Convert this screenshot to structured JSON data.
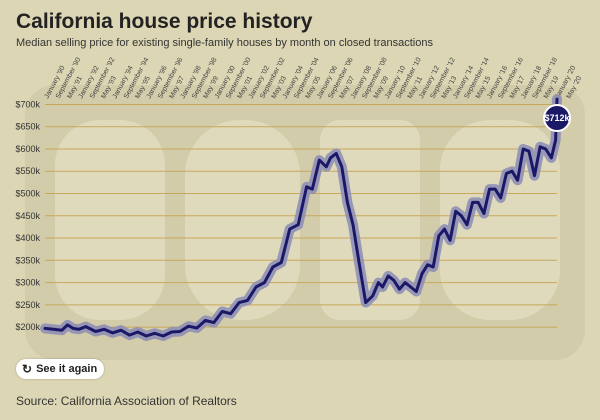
{
  "header": {
    "title": "California house price history",
    "subtitle": "Median selling price for existing single-family houses by month on closed transactions"
  },
  "controls": {
    "replay_label": "See it again",
    "replay_icon": "replay-icon"
  },
  "footer": {
    "source": "Source: California Association of Realtors"
  },
  "colors": {
    "background": "#dcd6b4",
    "line": "#1b1868",
    "halo": "#8f8fb5",
    "grid": "#c8a75a",
    "callout": "#1b1868"
  },
  "callout": {
    "label": "$712k"
  },
  "chart_data": {
    "type": "line",
    "title": "California house price history",
    "subtitle": "Median selling price for existing single-family houses by month on closed transactions",
    "x_range": [
      "1990-01",
      "2020-05"
    ],
    "ylim": [
      180,
      710
    ],
    "y_ticks": [
      200,
      250,
      300,
      350,
      400,
      450,
      500,
      550,
      600,
      650,
      700
    ],
    "y_tick_labels": [
      "$200k",
      "$250k",
      "$300k",
      "$350k",
      "$400k",
      "$450k",
      "$500k",
      "$550k",
      "$600k",
      "$650k",
      "$700k"
    ],
    "grid": true,
    "x_tick_labels": [
      "January '90",
      "September '90",
      "May '91",
      "January '92",
      "September '92",
      "May '93",
      "January '94",
      "September '94",
      "May '95",
      "January '96",
      "September '96",
      "May '97",
      "January '98",
      "September '98",
      "May '99",
      "January '00",
      "September '00",
      "May '01",
      "January '02",
      "September '02",
      "May '03",
      "January '04",
      "September '04",
      "May '05",
      "January '06",
      "September '06",
      "May '07",
      "January '08",
      "September '08",
      "May '09",
      "January '10",
      "September '10",
      "May '11",
      "January '12",
      "September '12",
      "May '13",
      "January '14",
      "September '14",
      "May '15",
      "January '16",
      "September '16",
      "May '17",
      "January '18",
      "September '18",
      "May '19",
      "January '20",
      "May '20"
    ],
    "series": [
      {
        "points": [
          [
            "1990-01",
            197
          ],
          [
            "1990-07",
            195
          ],
          [
            "1991-01",
            193
          ],
          [
            "1991-05",
            205
          ],
          [
            "1991-09",
            197
          ],
          [
            "1992-01",
            195
          ],
          [
            "1992-06",
            201
          ],
          [
            "1993-01",
            190
          ],
          [
            "1993-07",
            195
          ],
          [
            "1994-01",
            187
          ],
          [
            "1994-07",
            193
          ],
          [
            "1995-01",
            182
          ],
          [
            "1995-07",
            189
          ],
          [
            "1996-01",
            180
          ],
          [
            "1996-07",
            186
          ],
          [
            "1997-01",
            180
          ],
          [
            "1997-07",
            189
          ],
          [
            "1998-01",
            190
          ],
          [
            "1998-07",
            202
          ],
          [
            "1999-01",
            198
          ],
          [
            "1999-07",
            215
          ],
          [
            "2000-01",
            210
          ],
          [
            "2000-07",
            235
          ],
          [
            "2001-01",
            230
          ],
          [
            "2001-07",
            255
          ],
          [
            "2002-01",
            260
          ],
          [
            "2002-07",
            290
          ],
          [
            "2003-01",
            300
          ],
          [
            "2003-07",
            335
          ],
          [
            "2004-01",
            345
          ],
          [
            "2004-07",
            420
          ],
          [
            "2005-01",
            430
          ],
          [
            "2005-07",
            515
          ],
          [
            "2005-11",
            510
          ],
          [
            "2006-04",
            575
          ],
          [
            "2006-09",
            560
          ],
          [
            "2006-12",
            580
          ],
          [
            "2007-04",
            590
          ],
          [
            "2007-08",
            560
          ],
          [
            "2007-12",
            480
          ],
          [
            "2008-04",
            430
          ],
          [
            "2008-08",
            350
          ],
          [
            "2009-01",
            255
          ],
          [
            "2009-06",
            270
          ],
          [
            "2009-10",
            300
          ],
          [
            "2010-01",
            290
          ],
          [
            "2010-05",
            315
          ],
          [
            "2010-09",
            305
          ],
          [
            "2011-01",
            285
          ],
          [
            "2011-05",
            300
          ],
          [
            "2011-09",
            290
          ],
          [
            "2012-01",
            280
          ],
          [
            "2012-05",
            320
          ],
          [
            "2012-09",
            340
          ],
          [
            "2013-01",
            335
          ],
          [
            "2013-05",
            405
          ],
          [
            "2013-09",
            420
          ],
          [
            "2014-01",
            395
          ],
          [
            "2014-05",
            460
          ],
          [
            "2014-09",
            450
          ],
          [
            "2015-01",
            430
          ],
          [
            "2015-05",
            480
          ],
          [
            "2015-09",
            480
          ],
          [
            "2016-01",
            455
          ],
          [
            "2016-05",
            510
          ],
          [
            "2016-09",
            510
          ],
          [
            "2017-01",
            490
          ],
          [
            "2017-05",
            545
          ],
          [
            "2017-09",
            550
          ],
          [
            "2018-01",
            530
          ],
          [
            "2018-05",
            600
          ],
          [
            "2018-09",
            595
          ],
          [
            "2019-01",
            540
          ],
          [
            "2019-05",
            605
          ],
          [
            "2019-09",
            600
          ],
          [
            "2020-01",
            580
          ],
          [
            "2020-04",
            620
          ],
          [
            "2020-05",
            712
          ]
        ]
      }
    ],
    "annotations": [
      {
        "x": "2020-05",
        "y": 712,
        "label": "$712k"
      }
    ]
  }
}
